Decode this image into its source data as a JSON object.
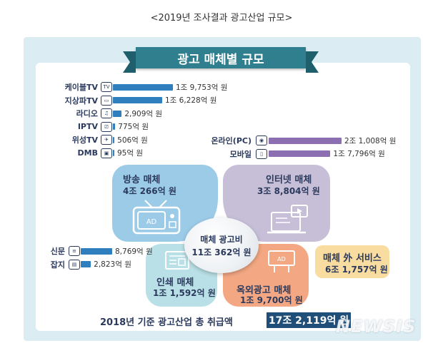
{
  "caption": "<2019년 조사결과 광고산업 규모>",
  "ribbon_title": "광고 매체별 규모",
  "chart_data": {
    "type": "bar",
    "title": "광고 매체별 규모",
    "unit": "억 원",
    "broadcast_bars": [
      {
        "name": "케이블TV",
        "value": 19753,
        "label": "1조 9,753억 원",
        "icon": "tv-icon"
      },
      {
        "name": "지상파TV",
        "value": 16228,
        "label": "1조 6,228억 원",
        "icon": "antenna-tv-icon"
      },
      {
        "name": "라디오",
        "value": 2909,
        "label": "2,909억 원",
        "icon": "radio-icon"
      },
      {
        "name": "IPTV",
        "value": 775,
        "label": "775억 원",
        "icon": "iptv-icon"
      },
      {
        "name": "위성TV",
        "value": 506,
        "label": "506억 원",
        "icon": "satellite-icon"
      },
      {
        "name": "DMB",
        "value": 95,
        "label": "95억 원",
        "icon": "mobile-tv-icon"
      }
    ],
    "internet_bars": [
      {
        "name": "온라인(PC)",
        "value": 21008,
        "label": "2조 1,008억 원",
        "icon": "monitor-icon"
      },
      {
        "name": "모바일",
        "value": 17796,
        "label": "1조 7,796억 원",
        "icon": "smartphone-icon"
      }
    ],
    "print_bars": [
      {
        "name": "신문",
        "value": 8769,
        "label": "8,769억 원",
        "icon": "newspaper-icon"
      },
      {
        "name": "잡지",
        "value": 2823,
        "label": "2,823억 원",
        "icon": "magazine-icon"
      }
    ],
    "categories": [
      {
        "name": "방송 매체",
        "value_label": "4조 266억 원",
        "value": 40266,
        "color": "#9ccbe8"
      },
      {
        "name": "인터넷 매체",
        "value_label": "3조 8,804억 원",
        "value": 38804,
        "color": "#c7bfd8"
      },
      {
        "name": "인쇄 매체",
        "value_label": "1조 1,592억 원",
        "value": 11592,
        "color": "#b9e0e6"
      },
      {
        "name": "옥외광고 매체",
        "value_label": "1조 9,700억 원",
        "value": 19700,
        "color": "#f3a783"
      },
      {
        "name": "매체 外 서비스",
        "value_label": "6조 1,757억 원",
        "value": 61757,
        "color": "#f8dca0"
      }
    ],
    "center": {
      "name": "매체 광고비",
      "value_label": "11조 362억 원",
      "value": 110362
    },
    "total": {
      "label": "2018년 기준 광고산업 총 취급액",
      "value_label": "17조 2,119억 원",
      "value": 172119
    },
    "colors": {
      "broadcast_bar": "#2f7fbf",
      "internet_bar": "#8c6fb0",
      "print_bar": "#2f7fbf"
    }
  },
  "watermark": "NEWSIS"
}
